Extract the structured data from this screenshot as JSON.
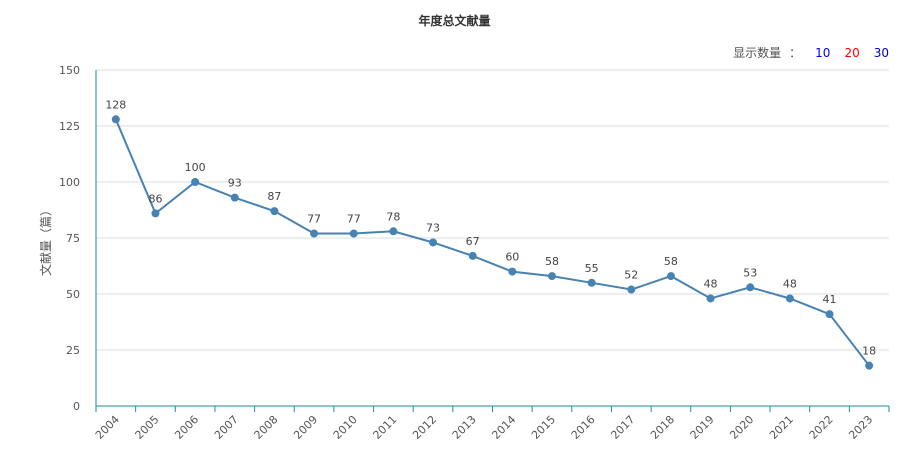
{
  "chart_data": {
    "type": "line",
    "title": "年度总文献量",
    "xlabel": "",
    "ylabel": "文献量（篇）",
    "ylim": [
      0,
      150
    ],
    "yticks": [
      0,
      25,
      50,
      75,
      100,
      125,
      150
    ],
    "categories": [
      "2004",
      "2005",
      "2006",
      "2007",
      "2008",
      "2009",
      "2010",
      "2011",
      "2012",
      "2013",
      "2014",
      "2015",
      "2016",
      "2017",
      "2018",
      "2019",
      "2020",
      "2021",
      "2022",
      "2023"
    ],
    "series": [
      {
        "values": [
          128,
          86,
          100,
          93,
          87,
          77,
          77,
          78,
          73,
          67,
          60,
          58,
          55,
          52,
          58,
          48,
          53,
          48,
          41,
          18
        ]
      }
    ],
    "line_color": "#4682b4",
    "axis_color": "#1e8c9c",
    "grid": true
  },
  "display_count": {
    "label": "显示数量",
    "colon": "：",
    "options": [
      {
        "label": "10",
        "color": "#0000ff"
      },
      {
        "label": "20",
        "color": "#ff0000"
      },
      {
        "label": "30",
        "color": "#0000cc"
      }
    ]
  }
}
